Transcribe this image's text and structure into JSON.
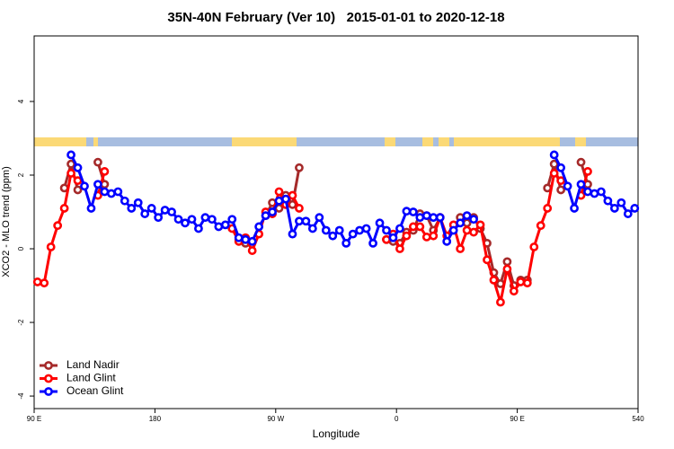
{
  "chart_data": {
    "type": "line",
    "title": "35N-40N February (Ver 10)   2015-01-01 to 2020-12-18",
    "x_label": "Longitude",
    "y_label": "XCO2 - MLO trend (ppm)",
    "xlim": [
      90,
      540
    ],
    "xticks": [
      {
        "value": 90,
        "label": "90 E"
      },
      180,
      {
        "value": 270,
        "label": "90 W"
      },
      {
        "value": 360,
        "label": "0"
      },
      {
        "value": 450,
        "label": "90 E"
      },
      540
    ],
    "ylim": [
      -4.34,
      5.78
    ],
    "yticks": [
      -4,
      -2,
      0,
      2,
      4
    ],
    "legend": "bottomleft",
    "series": [
      {
        "name": "Land Nadir",
        "color": "#a52a2a",
        "x": [
          112.5,
          117.5,
          122.5,
          127.5,
          137.5,
          142.5,
          147.5,
          242.5,
          247.5,
          252.5,
          262.5,
          267.5,
          272.5,
          277.5,
          282.5,
          287.5,
          292.5,
          352.5,
          357.5,
          362.5,
          367.5,
          372.5,
          377.5,
          382.5,
          387.5,
          392.5,
          397.5,
          407.5,
          412.5,
          417.5,
          422.5,
          427.5,
          432.5,
          437.5,
          442.5,
          447.5,
          452.5,
          457.5,
          462.5,
          472.5,
          477.5,
          482.5,
          487.5,
          497.5,
          502.5
        ],
        "values": [
          1.65,
          2.3,
          1.6,
          null,
          2.35,
          1.75,
          null,
          0.25,
          0.15,
          null,
          0.9,
          1.25,
          1.1,
          1.45,
          1.2,
          2.2,
          null,
          0.25,
          0.2,
          0.15,
          0.45,
          0.5,
          0.95,
          0.9,
          0.5,
          0.85,
          null,
          0.85,
          0.7,
          0.85,
          0.55,
          0.15,
          -0.65,
          -0.95,
          -0.35,
          -1.0,
          -0.85,
          -0.85,
          null,
          1.65,
          2.3,
          1.6,
          null,
          2.35,
          1.75
        ]
      },
      {
        "name": "Land Glint",
        "color": "#ff0000",
        "x": [
          92.5,
          97.5,
          102.5,
          107.5,
          112.5,
          117.5,
          122.5,
          127.5,
          137.5,
          142.5,
          147.5,
          237.5,
          242.5,
          247.5,
          252.5,
          257.5,
          262.5,
          267.5,
          272.5,
          277.5,
          282.5,
          287.5,
          292.5,
          352.5,
          357.5,
          362.5,
          367.5,
          372.5,
          377.5,
          382.5,
          387.5,
          392.5,
          397.5,
          402.5,
          407.5,
          412.5,
          417.5,
          422.5,
          427.5,
          432.5,
          437.5,
          442.5,
          447.5,
          452.5,
          457.5,
          462.5,
          467.5,
          472.5,
          477.5,
          482.5,
          487.5,
          497.5,
          502.5
        ],
        "values": [
          -0.9,
          -0.93,
          0.05,
          0.63,
          1.1,
          2.05,
          1.85,
          null,
          1.45,
          2.1,
          null,
          0.55,
          0.2,
          0.3,
          -0.05,
          0.4,
          1.0,
          0.95,
          1.55,
          1.2,
          1.45,
          1.1,
          null,
          0.25,
          0.4,
          0.0,
          0.35,
          0.6,
          0.6,
          0.32,
          0.35,
          0.85,
          0.35,
          0.65,
          0.0,
          0.5,
          0.45,
          0.65,
          -0.3,
          -0.85,
          -1.45,
          -0.55,
          -1.15,
          -0.9,
          -0.93,
          0.05,
          0.63,
          1.1,
          2.05,
          1.85,
          null,
          1.45,
          2.1
        ]
      },
      {
        "name": "Ocean Glint",
        "color": "#0000ff",
        "x": [
          117.5,
          122.5,
          127.5,
          132.5,
          137.5,
          142.5,
          147.5,
          152.5,
          157.5,
          162.5,
          167.5,
          172.5,
          177.5,
          182.5,
          187.5,
          192.5,
          197.5,
          202.5,
          207.5,
          212.5,
          217.5,
          222.5,
          227.5,
          232.5,
          237.5,
          242.5,
          247.5,
          252.5,
          257.5,
          262.5,
          267.5,
          272.5,
          277.5,
          282.5,
          287.5,
          292.5,
          297.5,
          302.5,
          307.5,
          312.5,
          317.5,
          322.5,
          327.5,
          332.5,
          337.5,
          342.5,
          347.5,
          352.5,
          357.5,
          362.5,
          367.5,
          372.5,
          377.5,
          382.5,
          387.5,
          392.5,
          397.5,
          402.5,
          407.5,
          412.5,
          417.5,
          422.5,
          427.5,
          432.5,
          437.5,
          442.5,
          447.5,
          452.5,
          457.5,
          462.5,
          467.5,
          472.5,
          477.5,
          482.5,
          487.5,
          492.5,
          497.5,
          502.5,
          507.5,
          512.5,
          517.5,
          522.5,
          527.5,
          532.5,
          537.5
        ],
        "values": [
          2.55,
          2.2,
          1.7,
          1.1,
          1.75,
          1.55,
          1.5,
          1.55,
          1.3,
          1.1,
          1.25,
          0.95,
          1.1,
          0.85,
          1.05,
          1.0,
          0.8,
          0.7,
          0.8,
          0.55,
          0.85,
          0.8,
          0.6,
          0.65,
          0.8,
          0.3,
          0.25,
          0.2,
          0.6,
          0.9,
          1.0,
          1.3,
          1.35,
          0.4,
          0.75,
          0.75,
          0.55,
          0.85,
          0.5,
          0.35,
          0.5,
          0.15,
          0.4,
          0.5,
          0.55,
          0.15,
          0.7,
          0.5,
          0.3,
          0.55,
          1.02,
          1.0,
          0.85,
          0.9,
          0.85,
          0.85,
          0.2,
          0.5,
          0.7,
          0.9,
          0.8,
          null,
          null,
          null,
          null,
          null,
          null,
          null,
          null,
          null,
          null,
          null,
          2.55,
          2.2,
          1.7,
          1.1,
          1.75,
          1.55,
          1.5,
          1.55,
          1.3,
          1.1,
          1.25,
          0.95,
          1.1
        ]
      }
    ]
  }
}
